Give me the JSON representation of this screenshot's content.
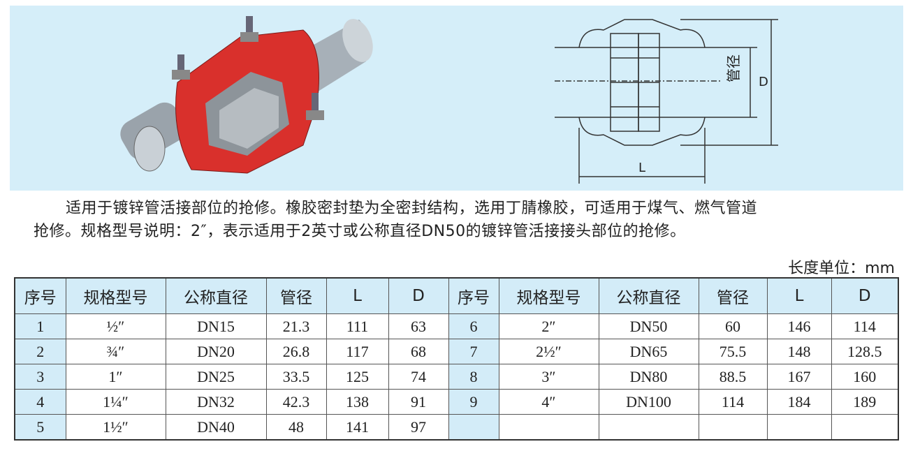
{
  "drawing": {
    "pipe_label": "管径",
    "d_label": "D",
    "l_label": "L"
  },
  "description": {
    "line1": "适用于镀锌管活接部位的抢修。橡胶密封垫为全密封结构，选用丁腈橡胶，可适用于煤气、燃气管道",
    "line2": "抢修。规格型号说明：2″，表示适用于2英寸或公称直径DN50的镀锌管活接接头部位的抢修。"
  },
  "unit_label": "长度单位：mm",
  "table": {
    "headers": [
      "序号",
      "规格型号",
      "公称直径",
      "管径",
      "L",
      "D",
      "序号",
      "规格型号",
      "公称直径",
      "管径",
      "L",
      "D"
    ],
    "rows": [
      [
        "1",
        "½″",
        "DN15",
        "21.3",
        "111",
        "63",
        "6",
        "2″",
        "DN50",
        "60",
        "146",
        "114"
      ],
      [
        "2",
        "¾″",
        "DN20",
        "26.8",
        "117",
        "68",
        "7",
        "2½″",
        "DN65",
        "75.5",
        "148",
        "128.5"
      ],
      [
        "3",
        "1″",
        "DN25",
        "33.5",
        "125",
        "74",
        "8",
        "3″",
        "DN80",
        "88.5",
        "167",
        "160"
      ],
      [
        "4",
        "1¼″",
        "DN32",
        "42.3",
        "138",
        "91",
        "9",
        "4″",
        "DN100",
        "114",
        "184",
        "189"
      ],
      [
        "5",
        "1½″",
        "DN40",
        "48",
        "141",
        "97",
        "",
        "",
        "",
        "",
        "",
        ""
      ]
    ]
  },
  "colors": {
    "banner": "#d5eef9",
    "header": "#d3ecf8",
    "clamp_red": "#d9302c"
  }
}
